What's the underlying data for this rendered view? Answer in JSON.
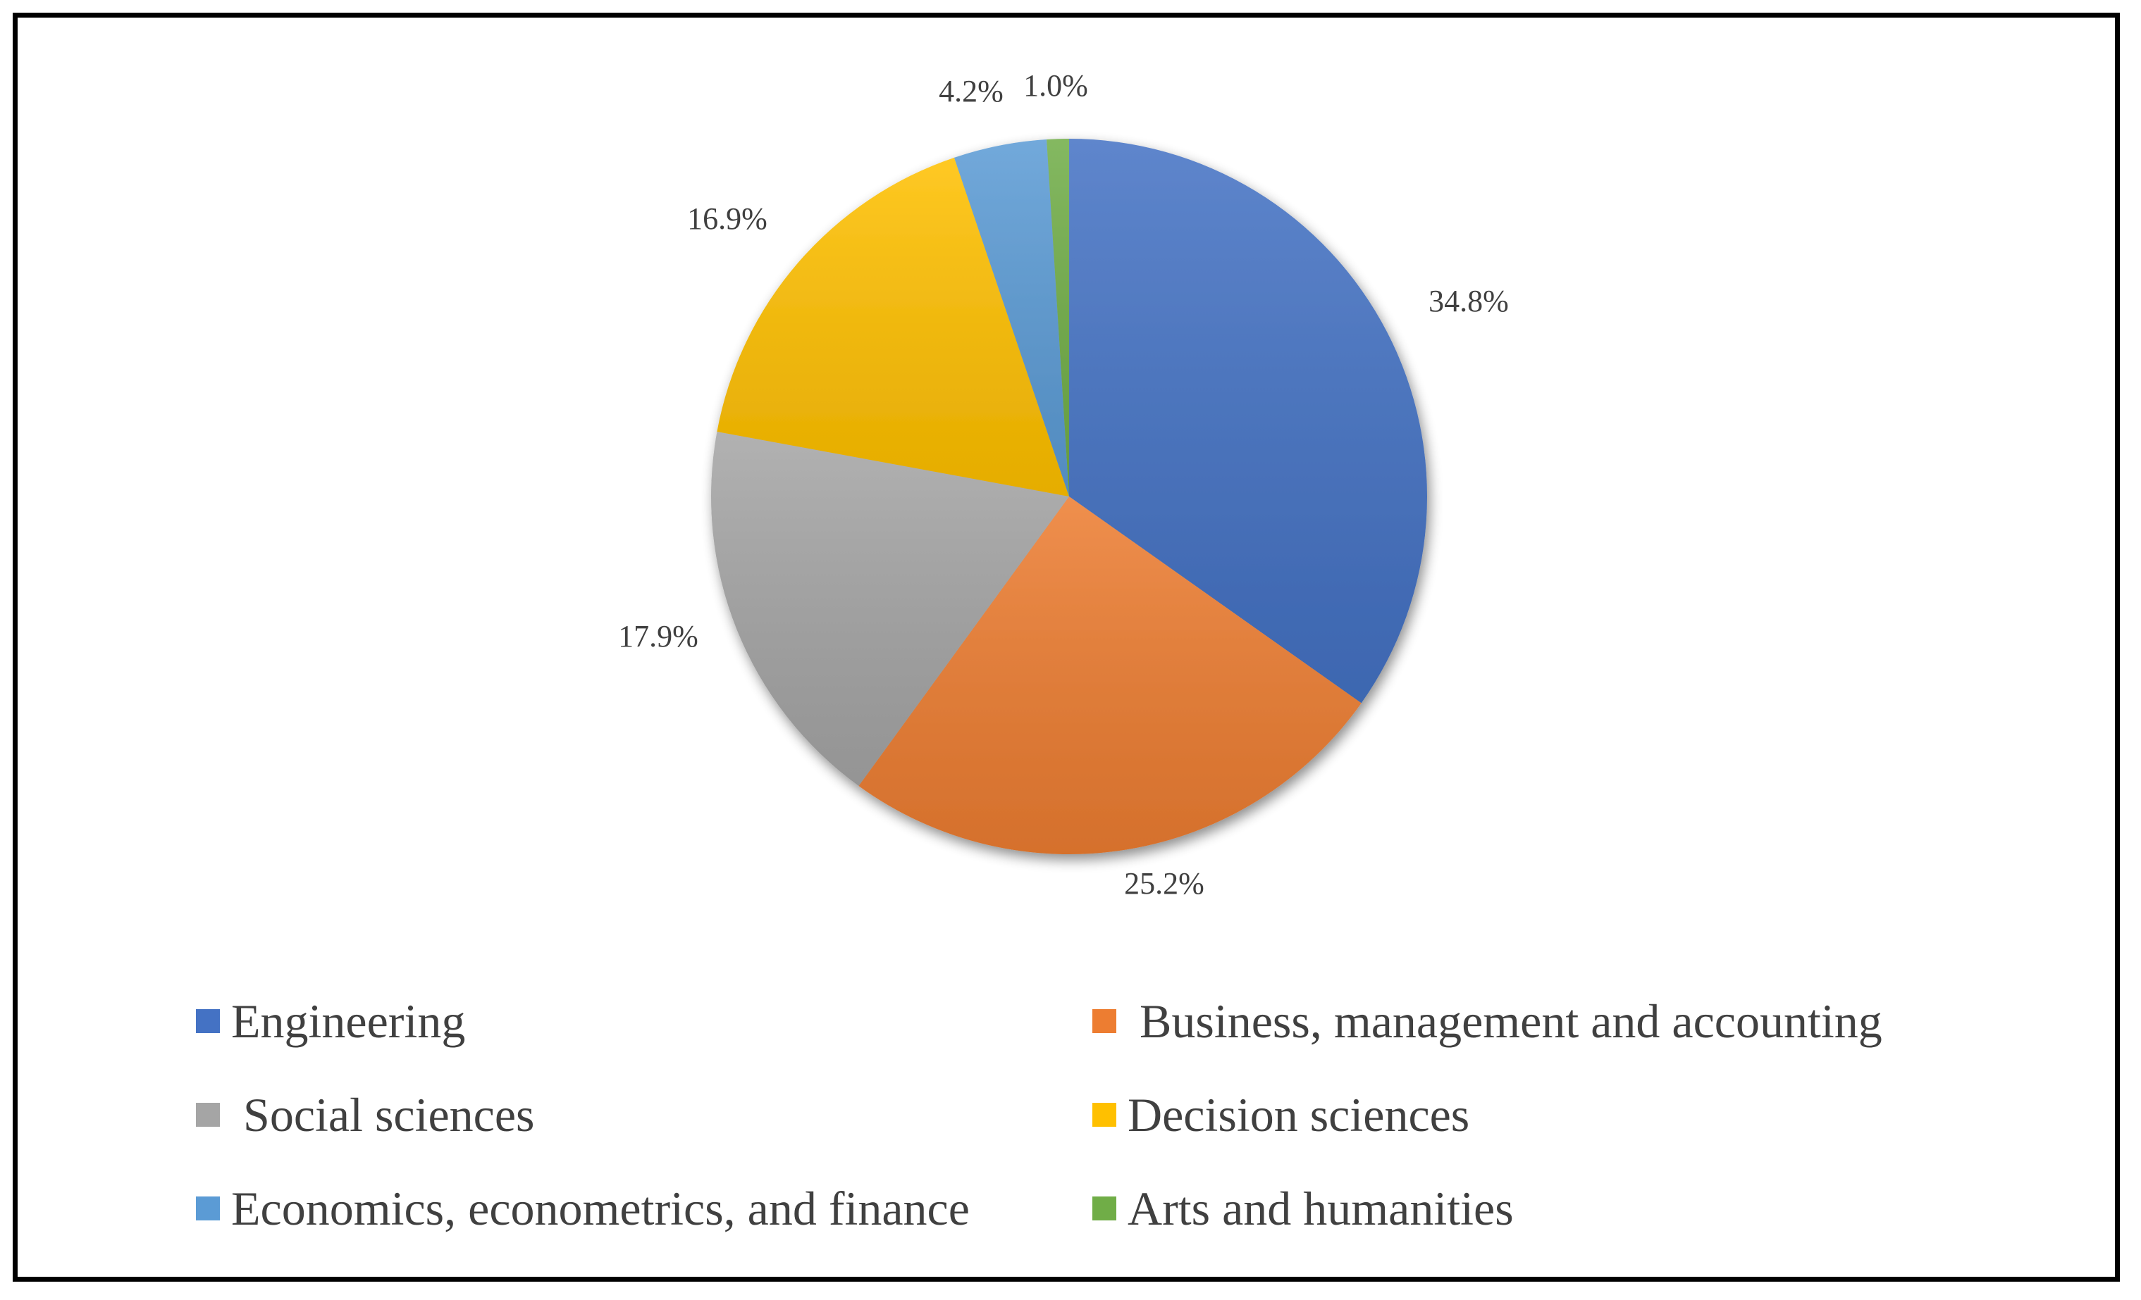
{
  "chart_data": {
    "type": "pie",
    "title": "",
    "legend_position": "bottom",
    "slices": [
      {
        "label": "Engineering",
        "value": 34.8,
        "display": "34.8%",
        "color": "#4472C4"
      },
      {
        "label": "Business, management and accounting",
        "value": 25.2,
        "display": "25.2%",
        "color": "#ED7D31"
      },
      {
        "label": "Social sciences",
        "value": 17.9,
        "display": "17.9%",
        "color": "#A5A5A5"
      },
      {
        "label": "Decision sciences",
        "value": 16.9,
        "display": "16.9%",
        "color": "#FFC000"
      },
      {
        "label": "Economics, econometrics, and finance",
        "value": 4.2,
        "display": "4.2%",
        "color": "#5B9BD5"
      },
      {
        "label": "Arts and humanities",
        "value": 1.0,
        "display": "1.0%",
        "color": "#70AD47"
      }
    ],
    "legend": {
      "items": [
        {
          "label": "Engineering",
          "text": "Engineering",
          "color": "#4472C4"
        },
        {
          "label": "Business, management and accounting",
          "text": " Business, management and accounting",
          "color": "#ED7D31"
        },
        {
          "label": "Social sciences",
          "text": " Social sciences",
          "color": "#A5A5A5"
        },
        {
          "label": "Decision sciences",
          "text": "Decision sciences",
          "color": "#FFC000"
        },
        {
          "label": "Economics, econometrics, and finance",
          "text": "Economics, econometrics, and finance",
          "color": "#5B9BD5"
        },
        {
          "label": "Arts and humanities",
          "text": "Arts and humanities",
          "color": "#70AD47"
        }
      ]
    }
  }
}
